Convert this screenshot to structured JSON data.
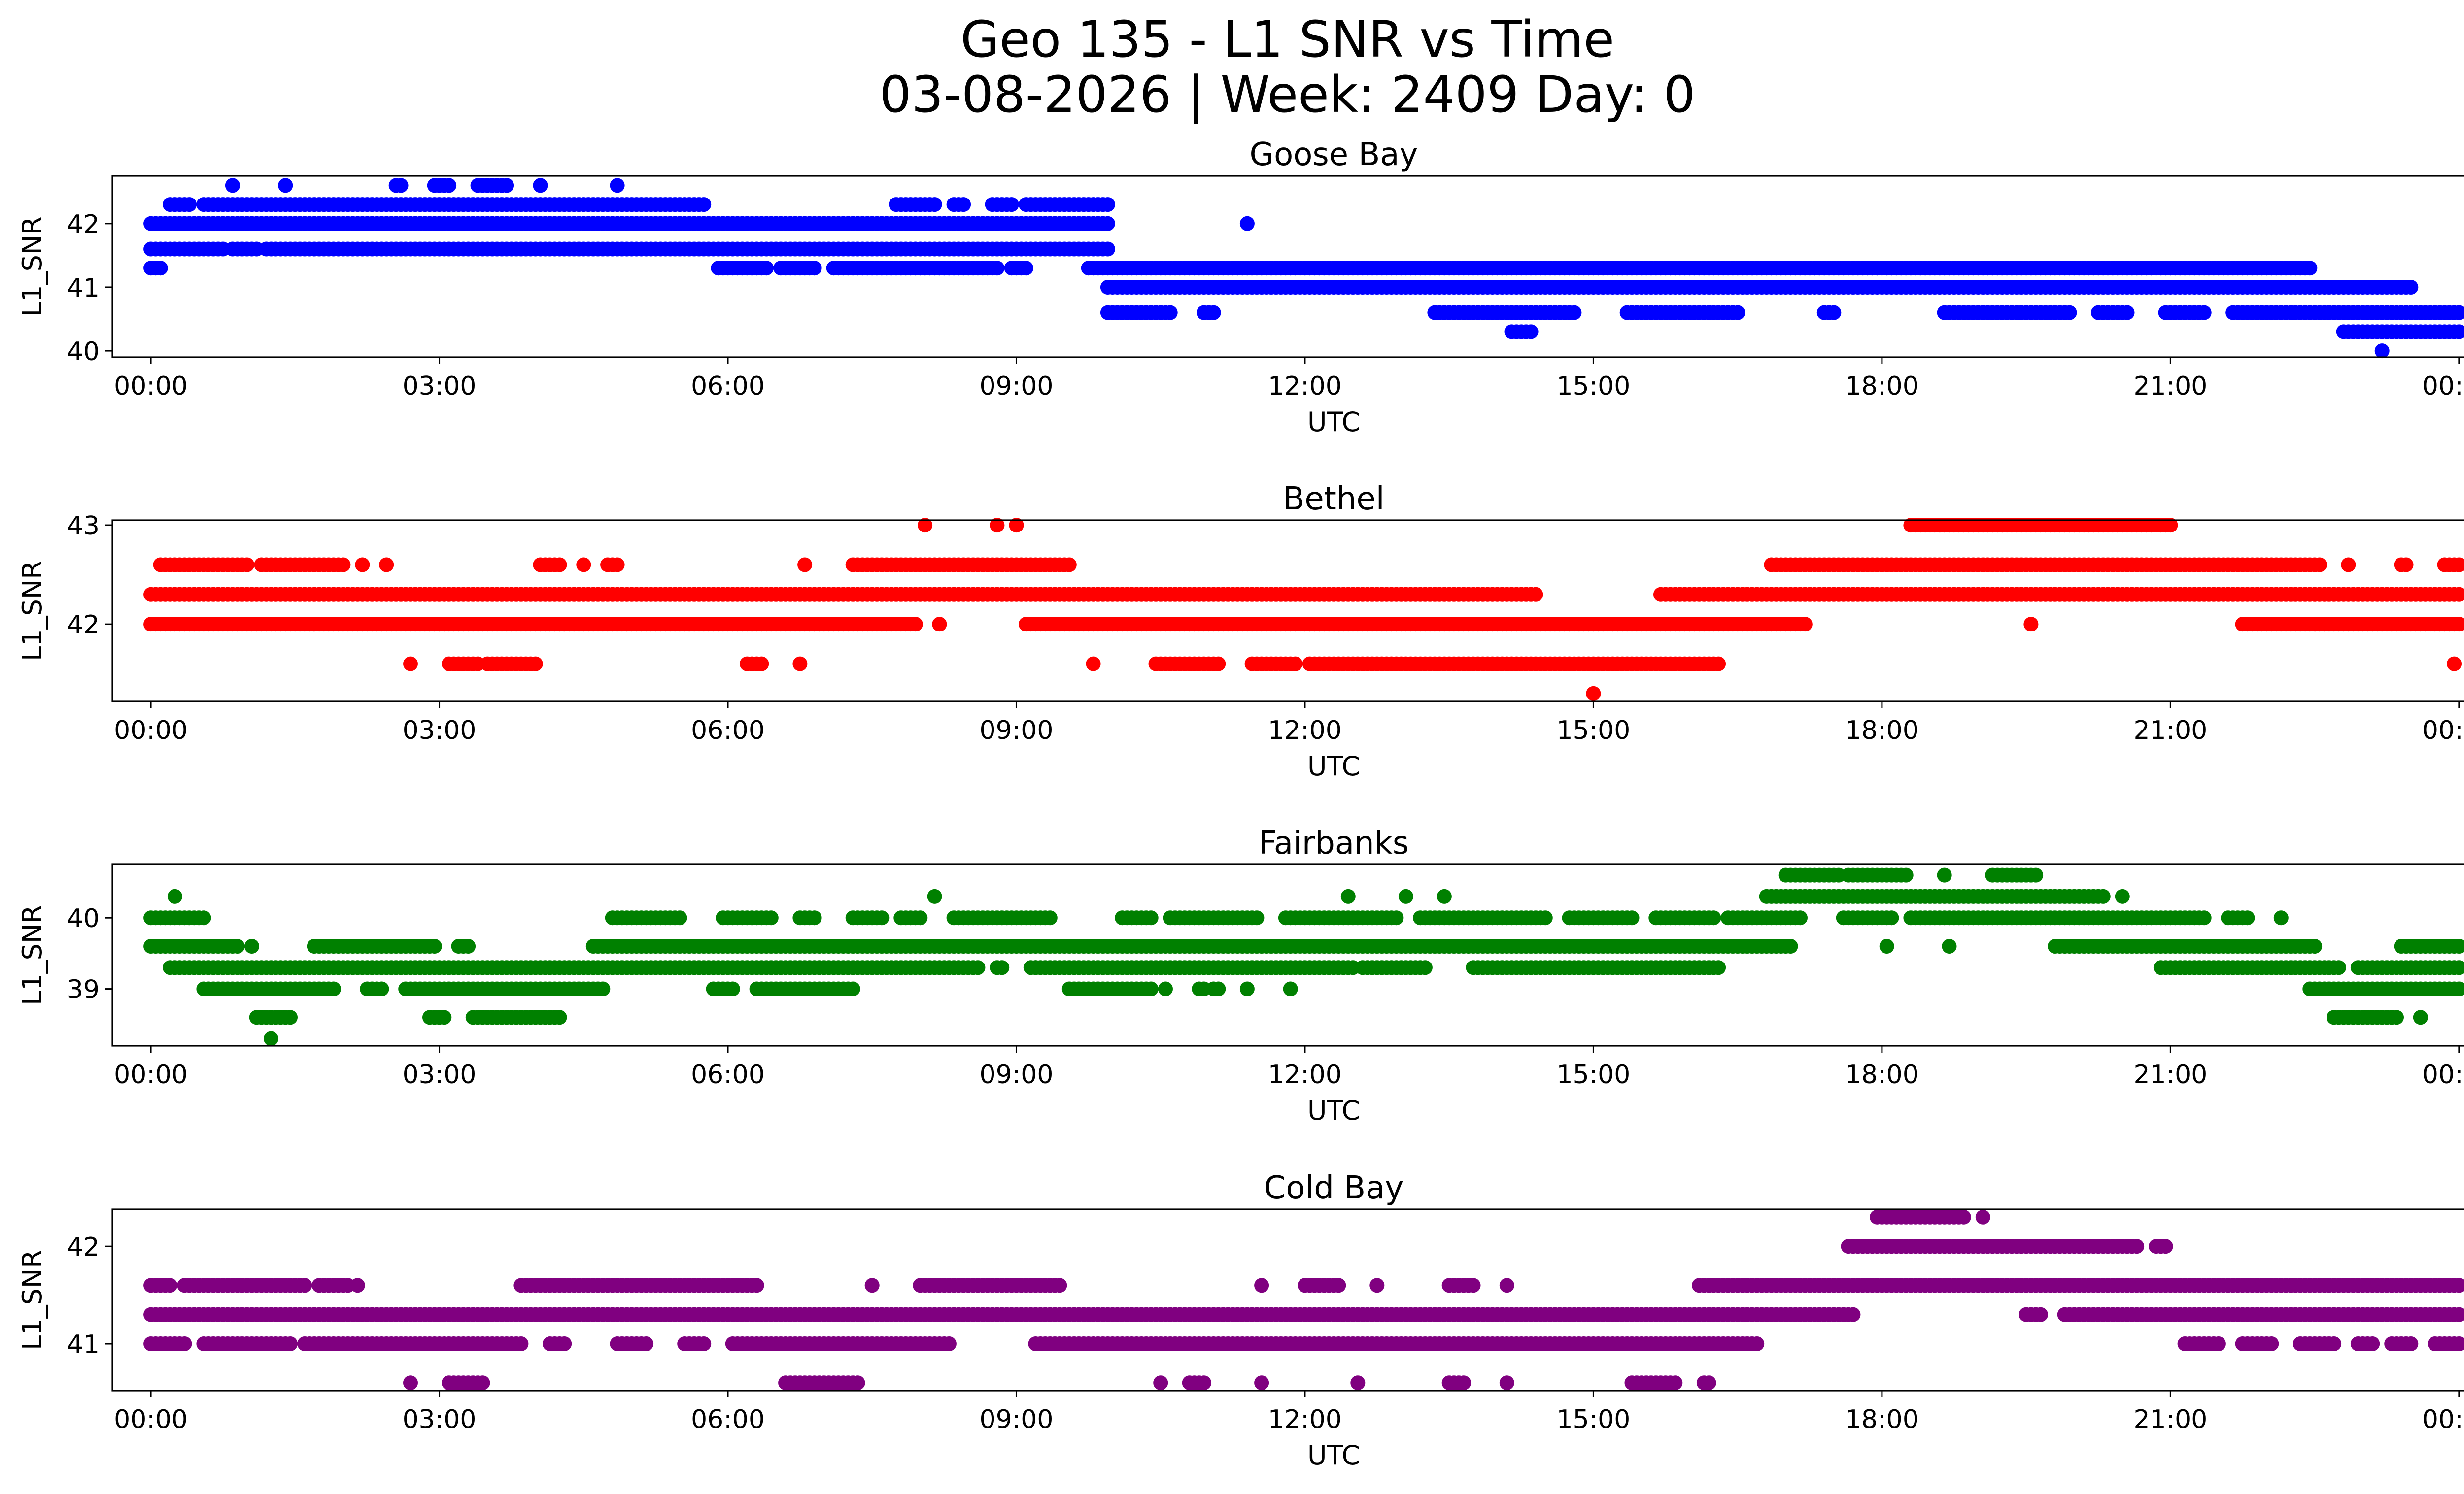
{
  "title": {
    "line1": "Geo 135 - L1 SNR vs Time",
    "line2": "03-08-2026 | Week: 2409 Day: 0"
  },
  "chart_data": [
    {
      "type": "scatter",
      "title": "Goose Bay",
      "xlabel": "UTC",
      "ylabel": "L1_SNR",
      "color": "#0000ff",
      "xlim": [
        -0.4,
        25.0
      ],
      "ylim": [
        39.9,
        42.75
      ],
      "xticks": [
        0,
        3,
        6,
        9,
        12,
        15,
        18,
        21,
        24
      ],
      "xtick_labels": [
        "00:00",
        "03:00",
        "06:00",
        "09:00",
        "12:00",
        "15:00",
        "18:00",
        "21:00",
        "00:00"
      ],
      "yticks": [
        40,
        41,
        42
      ],
      "ytick_labels": [
        "40",
        "41",
        "42"
      ],
      "levels": [
        {
          "y": 42.6,
          "ranges": [
            [
              0.85,
              0.85
            ],
            [
              1.4,
              1.4
            ],
            [
              2.55,
              2.6
            ],
            [
              2.95,
              3.1
            ],
            [
              3.4,
              3.7
            ],
            [
              4.05,
              4.05
            ],
            [
              4.85,
              4.85
            ]
          ]
        },
        {
          "y": 42.3,
          "ranges": [
            [
              0.2,
              0.4
            ],
            [
              0.55,
              5.75
            ],
            [
              7.75,
              8.15
            ],
            [
              8.35,
              8.45
            ],
            [
              8.75,
              8.95
            ],
            [
              9.1,
              9.95
            ]
          ]
        },
        {
          "y": 42.0,
          "ranges": [
            [
              0.0,
              9.95
            ],
            [
              11.4,
              11.4
            ]
          ]
        },
        {
          "y": 41.6,
          "ranges": [
            [
              0.0,
              0.75
            ],
            [
              0.85,
              1.1
            ],
            [
              1.2,
              9.95
            ]
          ]
        },
        {
          "y": 41.3,
          "ranges": [
            [
              0.0,
              0.1
            ],
            [
              5.9,
              6.4
            ],
            [
              6.55,
              6.9
            ],
            [
              7.1,
              8.8
            ],
            [
              8.95,
              9.1
            ],
            [
              9.75,
              22.45
            ]
          ]
        },
        {
          "y": 41.0,
          "ranges": [
            [
              9.95,
              23.5
            ]
          ]
        },
        {
          "y": 40.6,
          "ranges": [
            [
              9.95,
              10.6
            ],
            [
              10.95,
              11.05
            ],
            [
              13.35,
              14.8
            ],
            [
              15.35,
              16.5
            ],
            [
              17.4,
              17.5
            ],
            [
              18.65,
              19.95
            ],
            [
              20.25,
              20.55
            ],
            [
              20.95,
              21.35
            ],
            [
              21.65,
              24.0
            ]
          ]
        },
        {
          "y": 40.3,
          "ranges": [
            [
              14.15,
              14.35
            ],
            [
              22.8,
              24.0
            ]
          ]
        },
        {
          "y": 40.0,
          "ranges": [
            [
              23.2,
              23.2
            ]
          ]
        }
      ]
    },
    {
      "type": "scatter",
      "title": "Bethel",
      "xlabel": "UTC",
      "ylabel": "L1_SNR",
      "color": "#ff0000",
      "xlim": [
        -0.4,
        25.0
      ],
      "ylim": [
        41.22,
        43.05
      ],
      "xticks": [
        0,
        3,
        6,
        9,
        12,
        15,
        18,
        21,
        24
      ],
      "xtick_labels": [
        "00:00",
        "03:00",
        "06:00",
        "09:00",
        "12:00",
        "15:00",
        "18:00",
        "21:00",
        "00:00"
      ],
      "yticks": [
        42,
        43
      ],
      "ytick_labels": [
        "42",
        "43"
      ],
      "levels": [
        {
          "y": 43.0,
          "ranges": [
            [
              8.05,
              8.05
            ],
            [
              8.8,
              8.8
            ],
            [
              9.0,
              9.0
            ],
            [
              18.3,
              21.0
            ]
          ]
        },
        {
          "y": 42.6,
          "ranges": [
            [
              0.1,
              1.0
            ],
            [
              1.15,
              2.0
            ],
            [
              2.2,
              2.2
            ],
            [
              2.45,
              2.45
            ],
            [
              4.05,
              4.25
            ],
            [
              4.5,
              4.5
            ],
            [
              4.75,
              4.85
            ],
            [
              6.8,
              6.8
            ],
            [
              7.3,
              9.55
            ],
            [
              16.85,
              22.55
            ],
            [
              22.85,
              22.85
            ],
            [
              23.4,
              23.45
            ],
            [
              23.85,
              24.0
            ]
          ]
        },
        {
          "y": 42.3,
          "ranges": [
            [
              0.0,
              14.4
            ],
            [
              15.7,
              24.0
            ]
          ]
        },
        {
          "y": 42.0,
          "ranges": [
            [
              0.0,
              7.95
            ],
            [
              8.2,
              8.2
            ],
            [
              9.1,
              17.2
            ],
            [
              19.55,
              19.55
            ],
            [
              21.75,
              24.0
            ]
          ]
        },
        {
          "y": 41.6,
          "ranges": [
            [
              2.7,
              2.7
            ],
            [
              3.1,
              3.4
            ],
            [
              3.5,
              4.0
            ],
            [
              6.2,
              6.35
            ],
            [
              6.75,
              6.75
            ],
            [
              9.8,
              9.8
            ],
            [
              10.45,
              11.1
            ],
            [
              11.45,
              11.9
            ],
            [
              12.05,
              16.3
            ],
            [
              23.95,
              23.95
            ]
          ]
        },
        {
          "y": 41.3,
          "ranges": [
            [
              15.0,
              15.0
            ]
          ]
        }
      ]
    },
    {
      "type": "scatter",
      "title": "Fairbanks",
      "xlabel": "UTC",
      "ylabel": "L1_SNR",
      "color": "#008000",
      "xlim": [
        -0.4,
        25.0
      ],
      "ylim": [
        38.2,
        40.75
      ],
      "xticks": [
        0,
        3,
        6,
        9,
        12,
        15,
        18,
        21,
        24
      ],
      "xtick_labels": [
        "00:00",
        "03:00",
        "06:00",
        "09:00",
        "12:00",
        "15:00",
        "18:00",
        "21:00",
        "00:00"
      ],
      "yticks": [
        39,
        40
      ],
      "ytick_labels": [
        "39",
        "40"
      ],
      "levels": [
        {
          "y": 40.6,
          "ranges": [
            [
              17.0,
              17.55
            ],
            [
              17.65,
              18.25
            ],
            [
              18.65,
              18.65
            ],
            [
              19.15,
              19.6
            ]
          ]
        },
        {
          "y": 40.3,
          "ranges": [
            [
              0.25,
              0.25
            ],
            [
              8.15,
              8.15
            ],
            [
              12.45,
              12.45
            ],
            [
              13.05,
              13.05
            ],
            [
              13.45,
              13.45
            ],
            [
              16.8,
              20.3
            ],
            [
              20.5,
              20.5
            ]
          ]
        },
        {
          "y": 40.0,
          "ranges": [
            [
              0.0,
              0.55
            ],
            [
              4.8,
              5.5
            ],
            [
              5.95,
              6.3
            ],
            [
              6.35,
              6.45
            ],
            [
              6.75,
              6.9
            ],
            [
              7.3,
              7.6
            ],
            [
              7.8,
              8.0
            ],
            [
              8.35,
              9.35
            ],
            [
              10.1,
              10.4
            ],
            [
              10.6,
              11.5
            ],
            [
              11.8,
              12.95
            ],
            [
              13.2,
              14.5
            ],
            [
              14.75,
              15.4
            ],
            [
              15.65,
              16.25
            ],
            [
              16.4,
              17.15
            ],
            [
              17.6,
              18.1
            ],
            [
              18.3,
              21.35
            ],
            [
              21.6,
              21.8
            ],
            [
              22.15,
              22.15
            ]
          ]
        },
        {
          "y": 39.6,
          "ranges": [
            [
              0.0,
              0.9
            ],
            [
              1.05,
              1.05
            ],
            [
              1.7,
              2.95
            ],
            [
              3.2,
              3.3
            ],
            [
              4.6,
              17.05
            ],
            [
              18.05,
              18.05
            ],
            [
              18.7,
              18.7
            ],
            [
              19.8,
              22.5
            ],
            [
              23.4,
              24.0
            ]
          ]
        },
        {
          "y": 39.3,
          "ranges": [
            [
              0.2,
              8.6
            ],
            [
              8.8,
              8.85
            ],
            [
              9.15,
              9.2
            ],
            [
              9.2,
              12.5
            ],
            [
              12.6,
              13.25
            ],
            [
              13.75,
              16.3
            ],
            [
              20.9,
              22.75
            ],
            [
              22.95,
              24.0
            ]
          ]
        },
        {
          "y": 39.0,
          "ranges": [
            [
              0.55,
              1.9
            ],
            [
              2.25,
              2.4
            ],
            [
              2.65,
              4.7
            ],
            [
              5.85,
              6.05
            ],
            [
              6.3,
              7.3
            ],
            [
              9.55,
              10.4
            ],
            [
              10.55,
              10.55
            ],
            [
              10.9,
              10.95
            ],
            [
              11.05,
              11.1
            ],
            [
              11.4,
              11.4
            ],
            [
              11.85,
              11.85
            ],
            [
              22.45,
              24.0
            ]
          ]
        },
        {
          "y": 38.6,
          "ranges": [
            [
              1.1,
              1.45
            ],
            [
              2.9,
              3.05
            ],
            [
              3.35,
              4.25
            ],
            [
              22.7,
              23.35
            ],
            [
              23.6,
              23.6
            ]
          ]
        },
        {
          "y": 38.3,
          "ranges": [
            [
              1.25,
              1.25
            ]
          ]
        }
      ]
    },
    {
      "type": "scatter",
      "title": "Cold Bay",
      "xlabel": "UTC",
      "ylabel": "L1_SNR",
      "color": "#800080",
      "xlim": [
        -0.4,
        25.0
      ],
      "ylim": [
        40.52,
        42.38
      ],
      "xticks": [
        0,
        3,
        6,
        9,
        12,
        15,
        18,
        21,
        24
      ],
      "xtick_labels": [
        "00:00",
        "03:00",
        "06:00",
        "09:00",
        "12:00",
        "15:00",
        "18:00",
        "21:00",
        "00:00"
      ],
      "yticks": [
        41,
        42
      ],
      "ytick_labels": [
        "41",
        "42"
      ],
      "levels": [
        {
          "y": 42.3,
          "ranges": [
            [
              17.95,
              18.85
            ],
            [
              19.05,
              19.05
            ]
          ]
        },
        {
          "y": 42.0,
          "ranges": [
            [
              17.65,
              20.65
            ],
            [
              20.85,
              20.95
            ]
          ]
        },
        {
          "y": 41.6,
          "ranges": [
            [
              0.0,
              0.2
            ],
            [
              0.35,
              1.6
            ],
            [
              1.75,
              2.05
            ],
            [
              2.15,
              2.15
            ],
            [
              3.85,
              6.3
            ],
            [
              7.5,
              7.5
            ],
            [
              8.0,
              9.45
            ],
            [
              11.55,
              11.55
            ],
            [
              12.0,
              12.35
            ],
            [
              12.75,
              12.75
            ],
            [
              13.5,
              13.75
            ],
            [
              14.1,
              14.1
            ],
            [
              16.1,
              24.0
            ]
          ]
        },
        {
          "y": 41.3,
          "ranges": [
            [
              0.0,
              17.7
            ],
            [
              19.5,
              19.65
            ],
            [
              19.9,
              24.0
            ]
          ]
        },
        {
          "y": 41.0,
          "ranges": [
            [
              0.0,
              0.35
            ],
            [
              0.55,
              1.45
            ],
            [
              1.6,
              3.85
            ],
            [
              4.15,
              4.3
            ],
            [
              4.85,
              5.15
            ],
            [
              5.55,
              5.75
            ],
            [
              6.05,
              8.3
            ],
            [
              9.2,
              16.7
            ],
            [
              21.15,
              21.5
            ],
            [
              21.75,
              22.05
            ],
            [
              22.35,
              22.7
            ],
            [
              22.95,
              23.1
            ],
            [
              23.3,
              23.5
            ],
            [
              23.75,
              24.0
            ]
          ]
        },
        {
          "y": 40.6,
          "ranges": [
            [
              2.7,
              2.7
            ],
            [
              3.1,
              3.45
            ],
            [
              6.6,
              7.35
            ],
            [
              10.5,
              10.5
            ],
            [
              10.8,
              10.95
            ],
            [
              11.55,
              11.55
            ],
            [
              12.55,
              12.55
            ],
            [
              13.5,
              13.65
            ],
            [
              14.1,
              14.1
            ],
            [
              15.4,
              15.85
            ],
            [
              16.15,
              16.2
            ]
          ]
        }
      ]
    }
  ]
}
